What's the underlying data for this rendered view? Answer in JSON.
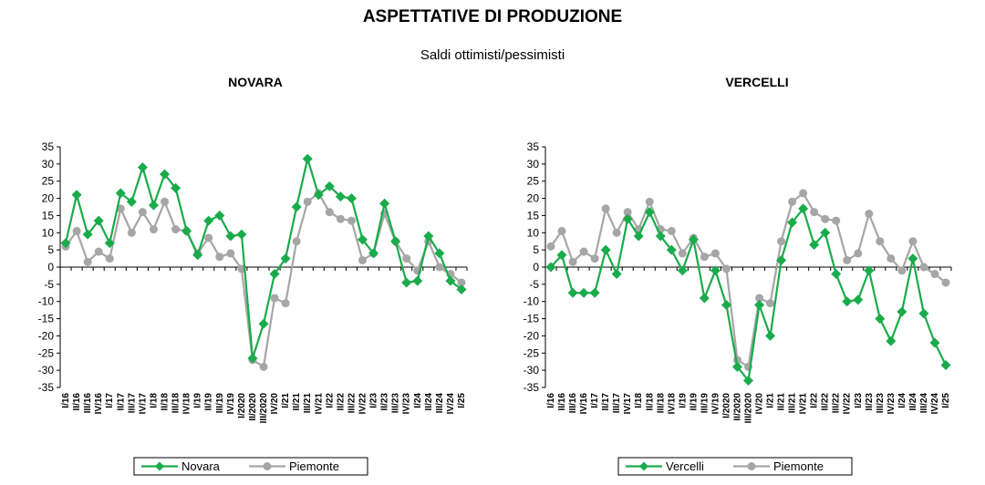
{
  "title": "ASPETTATIVE DI PRODUZIONE",
  "subtitle": "Saldi ottimisti/pessimisti",
  "colors": {
    "green": "#1aab4b",
    "gray": "#a6a6a6"
  },
  "chart_data": [
    {
      "type": "line",
      "title": "NOVARA",
      "ylim": [
        -35,
        35
      ],
      "yticks": [
        35,
        30,
        25,
        20,
        15,
        10,
        5,
        0,
        -5,
        -10,
        -15,
        -20,
        -25,
        -30,
        -35
      ],
      "legend_placement": "bottom",
      "x": [
        "I/16",
        "II/16",
        "III/16",
        "IV/16",
        "I/17",
        "II/17",
        "III/17",
        "IV/17",
        "I/18",
        "II/18",
        "III/18",
        "IV/18",
        "I/19",
        "II/19",
        "III/19",
        "IV/19",
        "I/2020",
        "II/2020",
        "III/2020",
        "IV/20",
        "I/21",
        "II/21",
        "III/21",
        "IV/21",
        "I/22",
        "II/22",
        "III/22",
        "IV/22",
        "I/23",
        "II/23",
        "III/23",
        "IV/23",
        "I/24",
        "II/24",
        "III/24",
        "IV/24",
        "I/25"
      ],
      "series": [
        {
          "name": "Novara",
          "color": "#1aab4b",
          "marker": "diamond",
          "values": [
            7,
            21,
            9.5,
            13.5,
            7,
            21.5,
            19,
            29,
            18,
            27,
            23,
            10.5,
            3.5,
            13.5,
            15,
            9,
            9.5,
            -26.5,
            -16.5,
            -2,
            2.5,
            17.5,
            31.5,
            21,
            23.5,
            20.5,
            20,
            8,
            4,
            18.5,
            7.5,
            -4.5,
            -4,
            9,
            4,
            -4,
            -6.5
          ]
        },
        {
          "name": "Piemonte",
          "color": "#a6a6a6",
          "marker": "circle",
          "values": [
            6,
            10.5,
            1.5,
            4.5,
            2.5,
            17,
            10,
            16,
            11,
            19,
            11,
            10.5,
            4,
            8.5,
            3,
            4,
            -0.5,
            -27,
            -29,
            -9,
            -10.5,
            7.5,
            19,
            21.5,
            16,
            14,
            13.5,
            2,
            4,
            15.5,
            7.5,
            2.5,
            -1,
            7.5,
            0,
            -2,
            -4.5
          ]
        }
      ]
    },
    {
      "type": "line",
      "title": "VERCELLI",
      "ylim": [
        -35,
        35
      ],
      "yticks": [
        35,
        30,
        25,
        20,
        15,
        10,
        5,
        0,
        -5,
        -10,
        -15,
        -20,
        -25,
        -30,
        -35
      ],
      "legend_placement": "bottom",
      "x": [
        "I/16",
        "II/16",
        "III/16",
        "IV/16",
        "I/17",
        "II/17",
        "III/17",
        "IV/17",
        "I/18",
        "II/18",
        "III/18",
        "IV/18",
        "I/19",
        "II/19",
        "III/19",
        "IV/19",
        "I/2020",
        "II/2020",
        "III/2020",
        "IV/20",
        "I/21",
        "II/21",
        "III/21",
        "IV/21",
        "I/22",
        "II/22",
        "III/22",
        "IV/22",
        "I/23",
        "II/23",
        "III/23",
        "IV/23",
        "I/24",
        "II/24",
        "III/24",
        "IV/24",
        "I/25"
      ],
      "series": [
        {
          "name": "Vercelli",
          "color": "#1aab4b",
          "marker": "diamond",
          "values": [
            0,
            3.5,
            -7.5,
            -7.5,
            -7.5,
            5,
            -2,
            14,
            9,
            16,
            9,
            5,
            -1,
            8,
            -9,
            -1,
            -11,
            -29,
            -33,
            -11,
            -20,
            2,
            13,
            17,
            6.5,
            10,
            -2,
            -10,
            -9.5,
            -1,
            -15,
            -21.5,
            -13,
            2.5,
            -13.5,
            -22,
            -28.5
          ]
        },
        {
          "name": "Piemonte",
          "color": "#a6a6a6",
          "marker": "circle",
          "values": [
            6,
            10.5,
            1.5,
            4.5,
            2.5,
            17,
            10,
            16,
            11,
            19,
            11,
            10.5,
            4,
            8.5,
            3,
            4,
            -0.5,
            -27,
            -29,
            -9,
            -10.5,
            7.5,
            19,
            21.5,
            16,
            14,
            13.5,
            2,
            4,
            15.5,
            7.5,
            2.5,
            -1,
            7.5,
            0,
            -2,
            -4.5
          ]
        }
      ]
    }
  ]
}
